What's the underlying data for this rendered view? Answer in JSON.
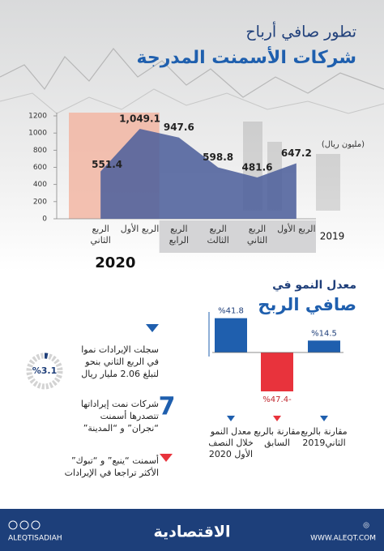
{
  "header": {
    "title_line1": "تطور صافي أرباح",
    "title_line2": "شركات الأسمنت المدرجة"
  },
  "chart_data": [
    {
      "type": "area",
      "unit": "(مليون ريال)",
      "year_labels": [
        "2020",
        "2019"
      ],
      "categories": [
        "الربع الثاني",
        "الربع الأول",
        "الربع الرابع",
        "الربع الثالث",
        "الربع الثاني",
        "الربع الأول"
      ],
      "values": [
        551.4,
        1049.1,
        947.6,
        598.8,
        481.6,
        647.2
      ],
      "value_labels": [
        "551.4",
        "1,049.1",
        "947.6",
        "598.8",
        "481.6",
        "647.2"
      ],
      "color": "#4f619c",
      "highlight_color": "#f2b6a3",
      "ylim": [
        0,
        1200
      ],
      "yticks": [
        0,
        200,
        400,
        600,
        800,
        1000,
        1200
      ]
    },
    {
      "type": "bar",
      "title_line1": "معدل النمو في",
      "title_line2": "صافي الربح",
      "categories": [
        "معدل النمو خلال النصف الأول 2020",
        "مقارنة بالربع السابق",
        "مقارنة بالربع الثاني2019"
      ],
      "values": [
        41.8,
        -47.4,
        14.5
      ],
      "value_labels": [
        "%41.8",
        "%47.4-",
        "%14.5"
      ],
      "colors": [
        "#1f5fae",
        "#e8333c",
        "#1f5fae"
      ]
    }
  ],
  "facts": [
    {
      "value": 3.1,
      "value_label": "%3.1",
      "lines": [
        "سجلت الإيرادات نموا",
        "في الربع الثاني بنحو",
        "لتبلغ 2.06 مليار ريال"
      ]
    },
    {
      "count": 7,
      "lines": [
        "شركات نمت إيراداتها",
        "تتصدرها أسمنت",
        "“نجران” و “المدينة”"
      ]
    },
    {
      "lines": [
        "أسمنت “ينبع” و “تبوك”",
        "الأكثر تراجعا في الإيرادات"
      ]
    }
  ],
  "footer": {
    "social": "ALEQTISADIAH",
    "logo": "الاقتصادية",
    "website": "WWW.ALEQT.COM"
  }
}
